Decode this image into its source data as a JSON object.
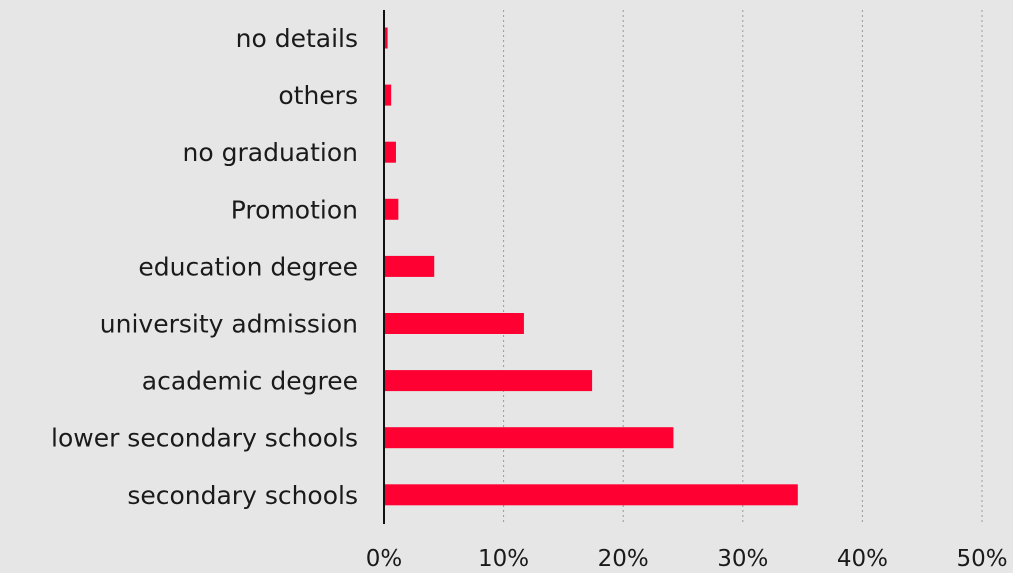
{
  "chart_data": {
    "type": "bar",
    "orientation": "horizontal",
    "categories": [
      "no details",
      "others",
      "no graduation",
      "Promotion",
      "education degree",
      "university admission",
      "academic degree",
      "lower secondary schools",
      "secondary schools"
    ],
    "values": [
      0.3,
      0.6,
      1.0,
      1.2,
      4.2,
      11.7,
      17.4,
      24.2,
      34.6
    ],
    "xlim": [
      0,
      50
    ],
    "x_ticks": [
      0,
      10,
      20,
      30,
      40,
      50
    ],
    "x_tick_labels": [
      "0%",
      "10%",
      "20%",
      "30%",
      "40%",
      "50%"
    ],
    "title": "",
    "xlabel": "",
    "ylabel": "",
    "grid": "vertical dotted",
    "legend": "none",
    "colors": {
      "bar": "#ff0033",
      "background": "#e6e6e6",
      "grid": "#999999",
      "axis": "#111111",
      "text": "#1a1a1a"
    }
  }
}
